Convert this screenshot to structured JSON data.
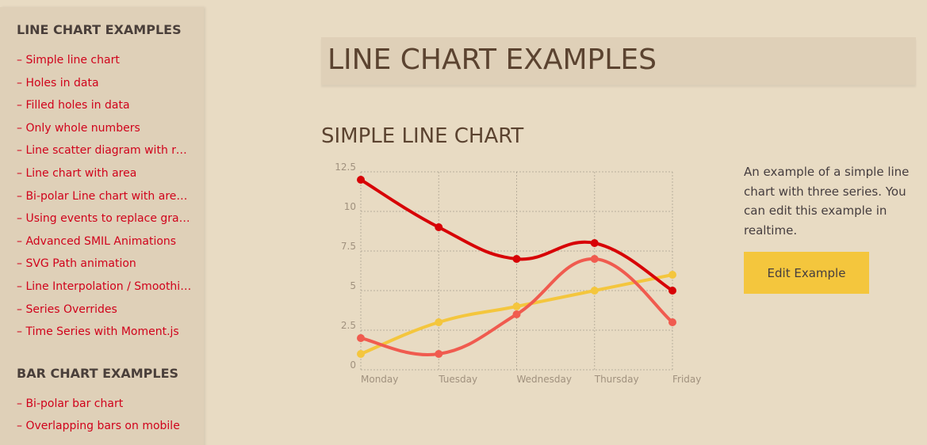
{
  "sidebar": {
    "groups": [
      {
        "heading": "LINE CHART EXAMPLES",
        "items": [
          "– Simple line chart",
          "– Holes in data",
          "– Filled holes in data",
          "– Only whole numbers",
          "– Line scatter diagram with res...",
          "– Line chart with area",
          "– Bi-polar Line chart with area ...",
          "– Using events to replace graph...",
          "– Advanced SMIL Animations",
          "– SVG Path animation",
          "– Line Interpolation / Smoothing",
          "– Series Overrides",
          "– Time Series with Moment.js"
        ]
      },
      {
        "heading": "BAR CHART EXAMPLES",
        "items": [
          "– Bi-polar bar chart",
          "– Overlapping bars on mobile"
        ]
      }
    ]
  },
  "main": {
    "title": "LINE CHART EXAMPLES",
    "section_title": "SIMPLE LINE CHART",
    "description": "An example of a simple line chart with three series. You can edit this example in realtime.",
    "edit_button": "Edit Example"
  },
  "colors": {
    "series_a": "#d70206",
    "series_b": "#f05b4f",
    "series_c": "#f4c63d",
    "link": "#d0021b"
  },
  "chart_data": {
    "type": "line",
    "categories": [
      "Monday",
      "Tuesday",
      "Wednesday",
      "Thursday",
      "Friday"
    ],
    "y_ticks": [
      "0",
      "2.5",
      "5",
      "7.5",
      "10",
      "12.5"
    ],
    "ylim": [
      0,
      12.5
    ],
    "grid": true,
    "series": [
      {
        "values": [
          12,
          9,
          7,
          8,
          5
        ]
      },
      {
        "values": [
          2,
          1,
          3.5,
          7,
          3
        ]
      },
      {
        "values": [
          1,
          3,
          4,
          5,
          6
        ]
      }
    ]
  }
}
